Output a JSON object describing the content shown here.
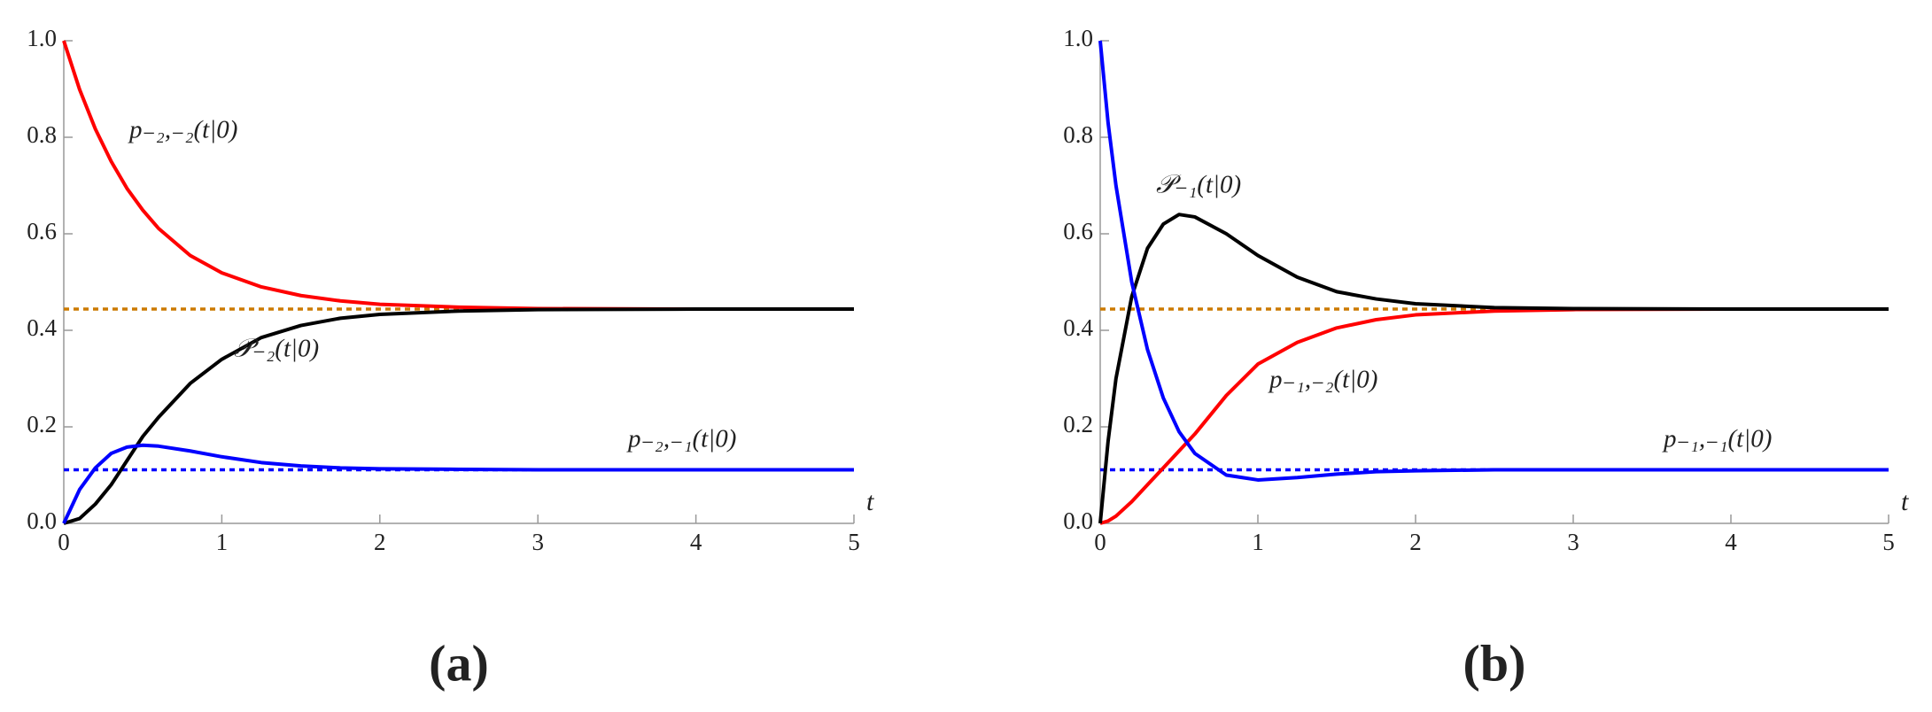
{
  "chart_data": [
    {
      "type": "line",
      "panel_label": "(a)",
      "x_label": "t",
      "x": [
        0,
        0.1,
        0.2,
        0.3,
        0.4,
        0.5,
        0.6,
        0.8,
        1,
        1.25,
        1.5,
        1.75,
        2,
        2.5,
        3,
        4,
        5
      ],
      "series": [
        {
          "name": "p₋₂,₋₂(t|0)",
          "color": "#ff0000",
          "values": [
            1,
            0.899,
            0.817,
            0.75,
            0.694,
            0.649,
            0.611,
            0.555,
            0.519,
            0.49,
            0.472,
            0.461,
            0.454,
            0.448,
            0.445,
            0.444,
            0.444
          ]
        },
        {
          "name": "𝒫₋₂(t|0)",
          "color": "#000000",
          "values": [
            0,
            0.01,
            0.04,
            0.08,
            0.13,
            0.18,
            0.22,
            0.29,
            0.34,
            0.385,
            0.41,
            0.425,
            0.433,
            0.44,
            0.443,
            0.444,
            0.444
          ]
        },
        {
          "name": "p₋₂,₋₁(t|0)",
          "color": "#0000ff",
          "values": [
            0,
            0.07,
            0.115,
            0.145,
            0.158,
            0.162,
            0.16,
            0.15,
            0.138,
            0.126,
            0.119,
            0.115,
            0.113,
            0.112,
            0.111,
            0.111,
            0.111
          ]
        }
      ],
      "reference_lines": [
        {
          "value": 0.444,
          "color": "#cc7a00"
        },
        {
          "value": 0.111,
          "color": "#0000ff"
        }
      ],
      "xlim": [
        0,
        5
      ],
      "ylim": [
        0,
        1
      ],
      "xticks": [
        0,
        1,
        2,
        3,
        4,
        5
      ],
      "yticks": [
        {
          "value": 0,
          "label": "0.0"
        },
        0.2,
        0.4,
        0.6,
        0.8,
        {
          "value": 1,
          "label": "1.0"
        }
      ]
    },
    {
      "type": "line",
      "panel_label": "(b)",
      "x_label": "t",
      "x": [
        0,
        0.05,
        0.1,
        0.2,
        0.3,
        0.4,
        0.5,
        0.6,
        0.8,
        1,
        1.25,
        1.5,
        1.75,
        2,
        2.5,
        3,
        4,
        5
      ],
      "series": [
        {
          "name": "p₋₁,₋₂(t|0)",
          "color": "#ff0000",
          "values": [
            0,
            0.005,
            0.015,
            0.045,
            0.08,
            0.115,
            0.15,
            0.185,
            0.265,
            0.33,
            0.375,
            0.405,
            0.422,
            0.432,
            0.44,
            0.443,
            0.444,
            0.444
          ]
        },
        {
          "name": "𝒫₋₁(t|0)",
          "color": "#000000",
          "values": [
            0,
            0.17,
            0.3,
            0.47,
            0.57,
            0.62,
            0.64,
            0.635,
            0.6,
            0.555,
            0.51,
            0.48,
            0.465,
            0.455,
            0.447,
            0.445,
            0.444,
            0.444
          ]
        },
        {
          "name": "p₋₁,₋₁(t|0)",
          "color": "#0000ff",
          "values": [
            1,
            0.83,
            0.7,
            0.5,
            0.36,
            0.26,
            0.19,
            0.145,
            0.1,
            0.09,
            0.095,
            0.102,
            0.107,
            0.109,
            0.111,
            0.111,
            0.111,
            0.111
          ]
        }
      ],
      "reference_lines": [
        {
          "value": 0.444,
          "color": "#cc7a00"
        },
        {
          "value": 0.111,
          "color": "#0000ff"
        }
      ],
      "xlim": [
        0,
        5
      ],
      "ylim": [
        0,
        1
      ],
      "xticks": [
        0,
        1,
        2,
        3,
        4,
        5
      ],
      "yticks": [
        {
          "value": 0,
          "label": "0.0"
        },
        0.2,
        0.4,
        0.6,
        0.8,
        {
          "value": 1,
          "label": "1.0"
        }
      ]
    }
  ]
}
